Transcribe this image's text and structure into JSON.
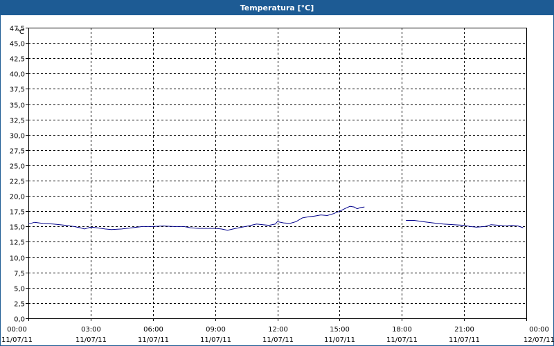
{
  "window": {
    "title": "Temperatura [°C]"
  },
  "colors": {
    "titlebar": "#1d5b94",
    "series": "#00008b",
    "grid": "#000000"
  },
  "chart_data": {
    "type": "line",
    "title": "Temperatura [°C]",
    "ylabel": "°C",
    "xlabel": "",
    "ylim": [
      0,
      47.5
    ],
    "xlim": [
      0,
      24
    ],
    "y_ticks": [
      0,
      2.5,
      5,
      7.5,
      10,
      12.5,
      15,
      17.5,
      20,
      22.5,
      25,
      27.5,
      30,
      32.5,
      35,
      37.5,
      40,
      42.5,
      45,
      47.5
    ],
    "y_tick_labels": [
      "0,0",
      "2,5",
      "5,0",
      "7,5",
      "10,0",
      "12,5",
      "15,0",
      "17,5",
      "20,0",
      "22,5",
      "25,0",
      "27,5",
      "30,0",
      "32,5",
      "35,0",
      "37,5",
      "40,0",
      "42,5",
      "45,0",
      "47,5"
    ],
    "x_ticks": [
      {
        "x": 0,
        "time": "00:00",
        "date": "11/07/11"
      },
      {
        "x": 3,
        "time": "03:00",
        "date": "11/07/11"
      },
      {
        "x": 6,
        "time": "06:00",
        "date": "11/07/11"
      },
      {
        "x": 9,
        "time": "09:00",
        "date": "11/07/11"
      },
      {
        "x": 12,
        "time": "12:00",
        "date": "11/07/11"
      },
      {
        "x": 15,
        "time": "15:00",
        "date": "11/07/11"
      },
      {
        "x": 18,
        "time": "18:00",
        "date": "11/07/11"
      },
      {
        "x": 21,
        "time": "21:00",
        "date": "11/07/11"
      },
      {
        "x": 24,
        "time": "00:00",
        "date": "12/07/11"
      }
    ],
    "grid": true,
    "series": [
      {
        "segments": [
          [
            [
              0.0,
              15.4
            ],
            [
              0.3,
              15.7
            ],
            [
              0.7,
              15.5
            ],
            [
              1.2,
              15.4
            ],
            [
              1.8,
              15.2
            ],
            [
              2.2,
              15.0
            ],
            [
              2.5,
              14.8
            ],
            [
              2.7,
              14.6
            ],
            [
              3.0,
              14.9
            ],
            [
              3.3,
              14.8
            ],
            [
              3.7,
              14.6
            ],
            [
              4.0,
              14.5
            ],
            [
              4.5,
              14.6
            ],
            [
              5.0,
              14.8
            ],
            [
              5.5,
              15.0
            ],
            [
              6.0,
              15.0
            ],
            [
              6.5,
              15.1
            ],
            [
              7.0,
              15.0
            ],
            [
              7.5,
              15.0
            ],
            [
              7.8,
              14.8
            ],
            [
              8.2,
              14.7
            ],
            [
              8.7,
              14.7
            ],
            [
              9.0,
              14.7
            ],
            [
              9.3,
              14.6
            ],
            [
              9.6,
              14.4
            ],
            [
              10.0,
              14.7
            ],
            [
              10.3,
              14.9
            ],
            [
              10.6,
              15.1
            ],
            [
              11.0,
              15.4
            ],
            [
              11.3,
              15.3
            ],
            [
              11.6,
              15.2
            ],
            [
              11.9,
              15.4
            ],
            [
              12.0,
              15.8
            ],
            [
              12.3,
              15.6
            ],
            [
              12.6,
              15.5
            ],
            [
              12.9,
              15.8
            ],
            [
              13.2,
              16.4
            ],
            [
              13.5,
              16.6
            ],
            [
              13.8,
              16.7
            ],
            [
              14.1,
              16.9
            ],
            [
              14.4,
              16.8
            ],
            [
              14.7,
              17.1
            ],
            [
              15.0,
              17.5
            ],
            [
              15.3,
              18.0
            ],
            [
              15.5,
              18.3
            ],
            [
              15.7,
              18.2
            ],
            [
              15.85,
              17.9
            ],
            [
              16.0,
              18.1
            ],
            [
              16.2,
              18.2
            ]
          ],
          [
            [
              18.2,
              16.0
            ],
            [
              18.6,
              16.0
            ],
            [
              19.0,
              15.8
            ],
            [
              19.5,
              15.6
            ],
            [
              20.0,
              15.4
            ],
            [
              20.5,
              15.3
            ],
            [
              21.0,
              15.2
            ],
            [
              21.3,
              15.0
            ],
            [
              21.6,
              14.9
            ],
            [
              22.0,
              15.0
            ],
            [
              22.3,
              15.3
            ],
            [
              22.7,
              15.2
            ],
            [
              23.0,
              15.1
            ],
            [
              23.3,
              15.2
            ],
            [
              23.6,
              15.1
            ],
            [
              23.85,
              14.8
            ]
          ]
        ]
      }
    ]
  }
}
